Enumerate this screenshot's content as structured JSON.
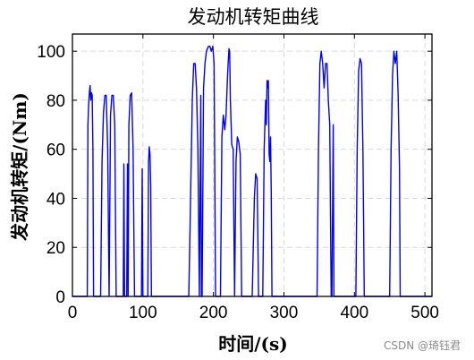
{
  "chart_data": {
    "type": "line",
    "title": "发动机转矩曲线",
    "xlabel": "时间/(s)",
    "ylabel": "发动机转矩/(Nm)",
    "xlim": [
      0,
      510
    ],
    "ylim": [
      0,
      107
    ],
    "xticks": [
      0,
      100,
      200,
      300,
      400,
      500
    ],
    "yticks": [
      0,
      20,
      40,
      60,
      80,
      100
    ],
    "grid": true,
    "grid_style": "dashed",
    "colors": {
      "line": "#0000ff",
      "grid": "#d9d9d9",
      "axes": "#000000"
    },
    "series": [
      {
        "x": [
          0,
          21,
          22,
          23,
          24,
          25,
          26,
          27,
          28,
          29,
          30,
          31,
          33,
          35,
          38,
          40,
          42,
          44,
          46,
          48,
          50,
          52,
          54,
          56,
          58,
          60,
          62,
          64,
          66,
          68,
          72,
          73,
          74,
          77,
          78,
          79,
          80,
          82,
          84,
          86,
          88,
          90,
          98,
          99,
          100,
          107,
          108,
          109,
          110,
          111,
          112,
          113,
          115,
          165,
          167,
          170,
          172,
          174,
          176,
          178,
          180,
          182,
          183,
          184,
          186,
          188,
          190,
          193,
          195,
          197,
          199,
          201,
          203,
          205,
          207,
          210,
          212,
          214,
          216,
          218,
          220,
          222,
          223,
          224,
          226,
          228,
          230,
          232,
          234,
          236,
          238,
          240,
          242,
          244,
          246,
          250,
          255,
          258,
          260,
          262,
          264,
          266,
          268,
          270,
          272,
          274,
          275,
          276,
          277,
          278,
          279,
          280,
          281,
          282,
          283,
          284,
          347,
          349,
          351,
          353,
          355,
          357,
          359,
          361,
          363,
          365,
          367,
          368,
          370,
          371,
          372,
          373,
          402,
          404,
          406,
          408,
          410,
          412,
          414,
          416,
          418,
          450,
          452,
          454,
          456,
          458,
          460,
          462,
          464,
          465,
          466,
          510
        ],
        "y": [
          0,
          0,
          70,
          78,
          83,
          86,
          80,
          83,
          82,
          60,
          0,
          0,
          0,
          0,
          0,
          0,
          55,
          75,
          82,
          82,
          60,
          0,
          74,
          82,
          82,
          70,
          0,
          0,
          0,
          0,
          0,
          54,
          0,
          0,
          54,
          0,
          70,
          82,
          83,
          60,
          0,
          0,
          0,
          52,
          0,
          0,
          55,
          61,
          58,
          45,
          0,
          0,
          0,
          0,
          30,
          80,
          95,
          95,
          85,
          60,
          0,
          82,
          0,
          0,
          85,
          95,
          100,
          102,
          102,
          100,
          102,
          95,
          0,
          0,
          0,
          0,
          65,
          74,
          68,
          74,
          90,
          101,
          100,
          80,
          62,
          60,
          0,
          55,
          65,
          63,
          58,
          0,
          0,
          0,
          0,
          0,
          0,
          40,
          50,
          48,
          0,
          0,
          0,
          0,
          60,
          80,
          70,
          88,
          85,
          88,
          58,
          55,
          65,
          42,
          0,
          0,
          0,
          60,
          95,
          100,
          95,
          85,
          95,
          95,
          80,
          70,
          0,
          0,
          70,
          0,
          0,
          0,
          0,
          60,
          92,
          97,
          95,
          60,
          0,
          0,
          0,
          0,
          60,
          90,
          100,
          95,
          100,
          82,
          52,
          0,
          0,
          0
        ]
      }
    ]
  },
  "watermark": "CSDN @琦钰君"
}
